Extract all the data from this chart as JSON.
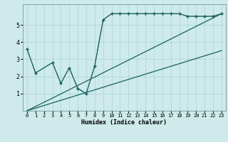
{
  "title": "",
  "xlabel": "Humidex (Indice chaleur)",
  "ylabel": "",
  "bg_color": "#ceeaea",
  "line_color": "#1a6060",
  "grid_color": "#aad4d4",
  "xlim": [
    -0.5,
    23.5
  ],
  "ylim": [
    0,
    6.2
  ],
  "xticks": [
    0,
    1,
    2,
    3,
    4,
    5,
    6,
    7,
    8,
    9,
    10,
    11,
    12,
    13,
    14,
    15,
    16,
    17,
    18,
    19,
    20,
    21,
    22,
    23
  ],
  "yticks": [
    1,
    2,
    3,
    4,
    5
  ],
  "series": [
    {
      "x": [
        0,
        1,
        3,
        4,
        5,
        6,
        7,
        8,
        9,
        10,
        11,
        12,
        13,
        14,
        15,
        16,
        17,
        18,
        19,
        20,
        21,
        22,
        23
      ],
      "y": [
        3.6,
        2.2,
        2.8,
        1.6,
        2.5,
        1.3,
        1.0,
        2.6,
        5.3,
        5.65,
        5.65,
        5.65,
        5.65,
        5.65,
        5.65,
        5.65,
        5.65,
        5.65,
        5.5,
        5.5,
        5.5,
        5.5,
        5.65
      ],
      "style": "dotted",
      "marker": "+"
    },
    {
      "x": [
        0,
        1,
        3,
        4,
        5,
        6,
        7,
        8,
        9,
        10,
        11,
        12,
        13,
        14,
        15,
        16,
        17,
        18,
        19,
        20,
        21,
        22,
        23
      ],
      "y": [
        3.6,
        2.2,
        2.8,
        1.6,
        2.5,
        1.3,
        1.0,
        2.6,
        5.3,
        5.65,
        5.65,
        5.65,
        5.65,
        5.65,
        5.65,
        5.65,
        5.65,
        5.65,
        5.5,
        5.5,
        5.5,
        5.5,
        5.65
      ],
      "style": "solid",
      "marker": "+"
    },
    {
      "x": [
        0,
        23
      ],
      "y": [
        0.0,
        5.65
      ],
      "style": "solid",
      "marker": null
    },
    {
      "x": [
        0,
        23
      ],
      "y": [
        0.0,
        3.5
      ],
      "style": "solid",
      "marker": null
    }
  ]
}
